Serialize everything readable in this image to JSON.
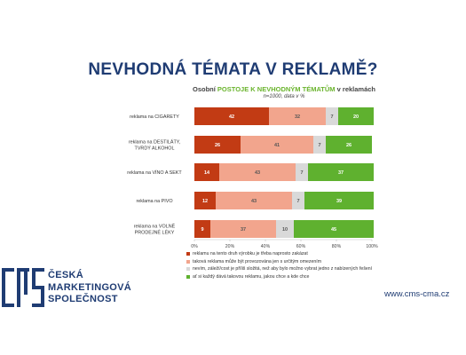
{
  "header": {
    "title": "NEVHODNÁ TÉMATA V REKLAMĚ?",
    "subtitle_pre": "Osobní ",
    "subtitle_highlight": "POSTOJE K NEVHODNÝM TÉMATŮM",
    "subtitle_post": " v reklamách",
    "subtitle_note": "n=1000, data v %"
  },
  "chart_data": {
    "type": "bar",
    "orientation": "horizontal",
    "stacked": true,
    "categories": [
      "reklama na CIGARETY",
      "reklama na DESTILÁTY, TVRDÝ ALKOHOL",
      "reklama na VÍNO A SEKT",
      "reklama na PIVO",
      "reklama na VOLNĚ PRODEJNÉ LÉKY"
    ],
    "series": [
      {
        "name": "reklamu na tento druh výrobku je třeba naprosto zakázat",
        "color": "#c23b14",
        "values": [
          42,
          26,
          14,
          12,
          9
        ]
      },
      {
        "name": "taková reklama může být provozována jen s určitým omezením",
        "color": "#f2a58d",
        "values": [
          32,
          41,
          43,
          43,
          37
        ]
      },
      {
        "name": "nevím, záleží/cost je příliš složitá, než aby bylo možno vybrat jedno z nabízených řešení",
        "color": "#d9d9d9",
        "values": [
          7,
          7,
          7,
          7,
          10
        ]
      },
      {
        "name": "ať si každý dává takovou reklamu, jakou chce a kde chce",
        "color": "#5fb12f",
        "values": [
          20,
          26,
          37,
          39,
          45
        ]
      }
    ],
    "xticks": [
      "0%",
      "20%",
      "40%",
      "60%",
      "80%",
      "100%"
    ],
    "xlim": [
      0,
      100
    ],
    "legend_position": "bottom"
  },
  "branding": {
    "logo_lines": [
      "ČESKÁ",
      "MARKETINGOVÁ",
      "SPOLEČNOST"
    ],
    "website": "www.cms-cma.cz",
    "logo_color": "#1f3c73"
  }
}
